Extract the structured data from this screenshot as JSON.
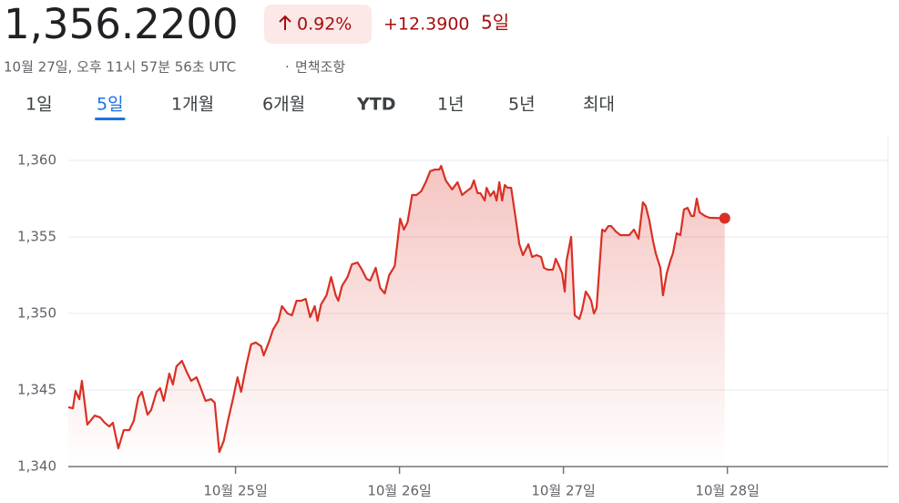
{
  "quote": {
    "price": "1,356.2200",
    "change_percent": "0.92%",
    "change": "+12.3900",
    "period": "5일",
    "timestamp": "10월 27일, 오후 11시 57분 56초 UTC",
    "disclaimer": "면책조항"
  },
  "tabs": {
    "items": [
      "1일",
      "5일",
      "1개월",
      "6개월",
      "YTD",
      "1년",
      "5년",
      "최대"
    ],
    "active": 1
  },
  "chart_data": {
    "type": "line",
    "color": "#d93025",
    "x": [
      23.98,
      24.008,
      24.024,
      24.047,
      24.063,
      24.096,
      24.141,
      24.174,
      24.202,
      24.23,
      24.252,
      24.285,
      24.318,
      24.352,
      24.379,
      24.407,
      24.429,
      24.463,
      24.485,
      24.518,
      24.54,
      24.562,
      24.596,
      24.618,
      24.64,
      24.673,
      24.707,
      24.729,
      24.762,
      24.784,
      24.817,
      24.851,
      24.873,
      24.901,
      24.928,
      24.956,
      24.984,
      25.012,
      25.034,
      25.067,
      25.095,
      25.123,
      25.156,
      25.172,
      25.206,
      25.228,
      25.261,
      25.283,
      25.317,
      25.344,
      25.372,
      25.4,
      25.428,
      25.455,
      25.483,
      25.5,
      25.522,
      25.555,
      25.583,
      25.611,
      25.627,
      25.649,
      25.683,
      25.71,
      25.744,
      25.771,
      25.799,
      25.821,
      25.855,
      25.882,
      25.91,
      25.937,
      25.971,
      26.004,
      26.027,
      26.049,
      26.077,
      26.104,
      26.132,
      26.16,
      26.187,
      26.215,
      26.243,
      26.254,
      26.282,
      26.321,
      26.354,
      26.382,
      26.409,
      26.437,
      26.454,
      26.476,
      26.493,
      26.52,
      26.531,
      26.554,
      26.576,
      26.592,
      26.609,
      26.626,
      26.642,
      26.659,
      26.681,
      26.709,
      26.731,
      26.753,
      26.786,
      26.809,
      26.836,
      26.864,
      26.881,
      26.903,
      26.936,
      26.953,
      26.969,
      26.992,
      27.008,
      27.019,
      27.047,
      27.069,
      27.097,
      27.114,
      27.136,
      27.158,
      27.169,
      27.186,
      27.202,
      27.236,
      27.252,
      27.274,
      27.291,
      27.319,
      27.347,
      27.402,
      27.43,
      27.458,
      27.485,
      27.502,
      27.524,
      27.546,
      27.563,
      27.591,
      27.607,
      27.63,
      27.652,
      27.668,
      27.691,
      27.713,
      27.735,
      27.757,
      27.78,
      27.796,
      27.813,
      27.83,
      27.863,
      27.891,
      27.984
    ],
    "values": [
      1343.87,
      1343.81,
      1344.94,
      1344.4,
      1345.6,
      1342.74,
      1343.33,
      1343.21,
      1342.86,
      1342.62,
      1342.86,
      1341.19,
      1342.38,
      1342.38,
      1342.98,
      1344.52,
      1344.88,
      1343.39,
      1343.69,
      1344.88,
      1345.12,
      1344.29,
      1346.07,
      1345.36,
      1346.55,
      1346.9,
      1346.07,
      1345.6,
      1345.83,
      1345.24,
      1344.29,
      1344.4,
      1344.17,
      1340.95,
      1341.67,
      1343.1,
      1344.4,
      1345.83,
      1344.88,
      1346.67,
      1347.98,
      1348.1,
      1347.86,
      1347.26,
      1348.21,
      1348.93,
      1349.52,
      1350.48,
      1350.0,
      1349.88,
      1350.83,
      1350.83,
      1350.95,
      1349.76,
      1350.48,
      1349.52,
      1350.6,
      1351.19,
      1352.38,
      1351.19,
      1350.83,
      1351.79,
      1352.38,
      1353.21,
      1353.33,
      1352.86,
      1352.26,
      1352.14,
      1352.98,
      1351.67,
      1351.31,
      1352.5,
      1353.1,
      1356.19,
      1355.48,
      1355.95,
      1357.74,
      1357.74,
      1357.98,
      1358.57,
      1359.29,
      1359.4,
      1359.4,
      1359.64,
      1358.69,
      1358.1,
      1358.57,
      1357.74,
      1357.98,
      1358.21,
      1358.69,
      1357.86,
      1357.86,
      1357.38,
      1358.21,
      1357.68,
      1357.98,
      1357.38,
      1358.57,
      1357.38,
      1358.39,
      1358.21,
      1358.21,
      1356.19,
      1354.52,
      1353.81,
      1354.52,
      1353.69,
      1353.81,
      1353.69,
      1352.98,
      1352.86,
      1352.86,
      1353.57,
      1353.21,
      1352.62,
      1351.43,
      1353.45,
      1355.0,
      1349.88,
      1349.64,
      1350.24,
      1351.43,
      1351.07,
      1350.83,
      1350.0,
      1350.36,
      1355.48,
      1355.36,
      1355.71,
      1355.71,
      1355.36,
      1355.12,
      1355.12,
      1355.48,
      1354.88,
      1357.26,
      1357.02,
      1356.07,
      1354.76,
      1353.93,
      1352.98,
      1351.19,
      1352.62,
      1353.45,
      1353.93,
      1355.24,
      1355.12,
      1356.79,
      1356.9,
      1356.37,
      1356.37,
      1357.5,
      1356.61,
      1356.37,
      1356.25,
      1356.22
    ],
    "xlim": [
      23.98,
      28.98
    ],
    "xticks": [
      {
        "value": 25,
        "label": "10월 25일"
      },
      {
        "value": 26,
        "label": "10월 26일"
      },
      {
        "value": 27,
        "label": "10월 27일"
      },
      {
        "value": 28,
        "label": "10월 28일"
      }
    ],
    "ylim": [
      1340,
      1360
    ],
    "yticks": [
      {
        "value": 1340,
        "label": "1,340"
      },
      {
        "value": 1345,
        "label": "1,345"
      },
      {
        "value": 1350,
        "label": "1,350"
      },
      {
        "value": 1355,
        "label": "1,355"
      },
      {
        "value": 1360,
        "label": "1,360"
      }
    ],
    "grid": true
  }
}
